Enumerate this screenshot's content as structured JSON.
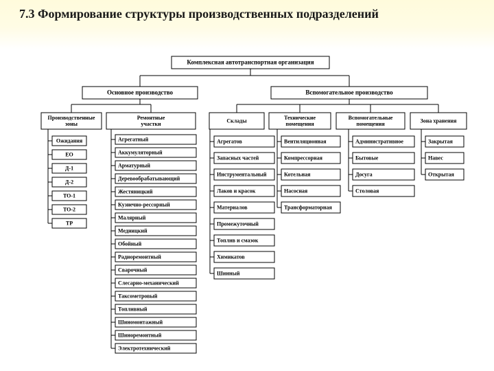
{
  "title": "7.3 Формирование структуры производственных подразделений",
  "diagram": {
    "type": "tree",
    "background_color": "#ffffff",
    "title_band_gradient": [
      "#fffbdc",
      "#ffffff"
    ],
    "box_stroke": "#000000",
    "box_fill": "#ffffff",
    "line_color": "#000000",
    "title_fontsize": 18,
    "root_fontsize": 9,
    "level2_fontsize": 9,
    "level3_fontsize": 8,
    "leaf_fontsize": 8,
    "nodes": {
      "root": "Комплексная автотранспортная организация",
      "level2": [
        "Основное производство",
        "Вспомогательное производство"
      ],
      "level3": [
        {
          "label_lines": [
            "Производственные",
            "зоны"
          ]
        },
        {
          "label_lines": [
            "Ремонтные",
            "участки"
          ]
        },
        {
          "label_lines": [
            "Склады"
          ]
        },
        {
          "label_lines": [
            "Технические",
            "помещения"
          ]
        },
        {
          "label_lines": [
            "Вспомогательные",
            "помещения"
          ]
        },
        {
          "label_lines": [
            "Зона хранения"
          ]
        }
      ],
      "col_zones": [
        "Ожидания",
        "ЕО",
        "Д-1",
        "Д-2",
        "ТО-1",
        "ТО-2",
        "ТР"
      ],
      "col_repair": [
        "Агрегатный",
        "Аккумуляторный",
        "Арматурный",
        "Деревообрабатывающий",
        "Жестяницкий",
        "Кузнечно-рессорный",
        "Малярный",
        "Медницкий",
        "Обойный",
        "Радиоремонтный",
        "Сварочный",
        "Слесарно-механический",
        "Таксометровый",
        "Топливный",
        "Шиномонтажный",
        "Шиноремонтный",
        "Электротехнический"
      ],
      "col_store": [
        "Агрегатов",
        "Запасных частей",
        "Инструментальный",
        "Лаков и красок",
        "Материалов",
        "Промежуточный",
        "Топлив и смазок",
        "Химикатов",
        "Шинный"
      ],
      "col_tech": [
        "Вентиляционная",
        "Компрессорная",
        "Котельная",
        "Насосная",
        "Трансформаторная"
      ],
      "col_aux": [
        "Административное",
        "Бытовые",
        "Досуга",
        "Столовая"
      ],
      "col_storage": [
        "Закрытая",
        "Навес",
        "Открытая"
      ]
    }
  }
}
